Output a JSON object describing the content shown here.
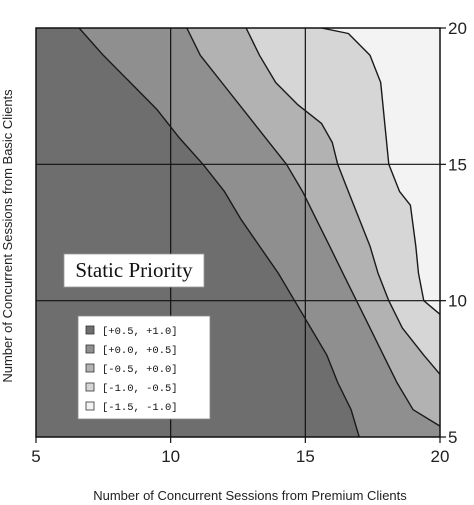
{
  "chart_data": {
    "type": "contour",
    "xlabel": "Number of Concurrent Sessions from Premium Clients",
    "ylabel": "Number of Concurrent Sessions from Basic Clients",
    "xlim": [
      5,
      20
    ],
    "ylim": [
      5,
      20
    ],
    "x_ticks": [
      "5",
      "10",
      "15",
      "20"
    ],
    "y_ticks": [
      "5",
      "10",
      "15",
      "20"
    ],
    "y_tick_side": "right",
    "grid": true,
    "annotation": "Static Priority",
    "legend_position": "bottom-left",
    "levels": [
      {
        "label": "[+0.5, +1.0]",
        "color": "#6e6e6e"
      },
      {
        "label": "[+0.0, +0.5]",
        "color": "#8f8f8f"
      },
      {
        "label": "[-0.5, +0.0]",
        "color": "#b2b2b2"
      },
      {
        "label": "[-1.0, -0.5]",
        "color": "#d6d6d6"
      },
      {
        "label": "[-1.5, -1.0]",
        "color": "#f3f3f3"
      }
    ],
    "boundaries": [
      {
        "between": "[+0.5, +1.0] / [+0.0, +0.5]",
        "points": [
          [
            6.6,
            20
          ],
          [
            7.5,
            19
          ],
          [
            8.5,
            18
          ],
          [
            9.5,
            17
          ],
          [
            10.3,
            16
          ],
          [
            11.2,
            15
          ],
          [
            12,
            14
          ],
          [
            12.6,
            13
          ],
          [
            13.3,
            12
          ],
          [
            14,
            11
          ],
          [
            14.6,
            10
          ],
          [
            15.2,
            9
          ],
          [
            15.8,
            8
          ],
          [
            16.2,
            7
          ],
          [
            16.7,
            6
          ],
          [
            17,
            5
          ]
        ]
      },
      {
        "between": "[+0.0, +0.5] / [-0.5, +0.0]",
        "points": [
          [
            10.6,
            20
          ],
          [
            11.1,
            19
          ],
          [
            11.9,
            18
          ],
          [
            12.7,
            17
          ],
          [
            13.5,
            16
          ],
          [
            14.3,
            15
          ],
          [
            14.9,
            14
          ],
          [
            15.4,
            13
          ],
          [
            15.9,
            12
          ],
          [
            16.4,
            11
          ],
          [
            16.9,
            10
          ],
          [
            17.4,
            9
          ],
          [
            17.9,
            8
          ],
          [
            18.4,
            7
          ],
          [
            19,
            6
          ],
          [
            20,
            5.4
          ]
        ]
      },
      {
        "between": "[-0.5, +0.0] / [-1.0, -0.5]",
        "points": [
          [
            12.8,
            20
          ],
          [
            13.3,
            19
          ],
          [
            13.9,
            18
          ],
          [
            14.7,
            17.2
          ],
          [
            15.6,
            16.5
          ],
          [
            16,
            15.8
          ],
          [
            16.2,
            15
          ],
          [
            16.6,
            14
          ],
          [
            17,
            13
          ],
          [
            17.4,
            12
          ],
          [
            17.7,
            11
          ],
          [
            18.1,
            10
          ],
          [
            18.6,
            9
          ],
          [
            19.4,
            8
          ],
          [
            20,
            7.3
          ]
        ]
      },
      {
        "between": "[-1.0, -0.5] / [-1.5, -1.0]",
        "points": [
          [
            15.6,
            20
          ],
          [
            16.6,
            19.8
          ],
          [
            17.4,
            19
          ],
          [
            17.8,
            18
          ],
          [
            18,
            16
          ],
          [
            18.1,
            15
          ],
          [
            18.5,
            14
          ],
          [
            18.9,
            13.5
          ],
          [
            19.1,
            12
          ],
          [
            19.2,
            11
          ],
          [
            19.4,
            10
          ],
          [
            20,
            9.5
          ]
        ]
      }
    ]
  }
}
